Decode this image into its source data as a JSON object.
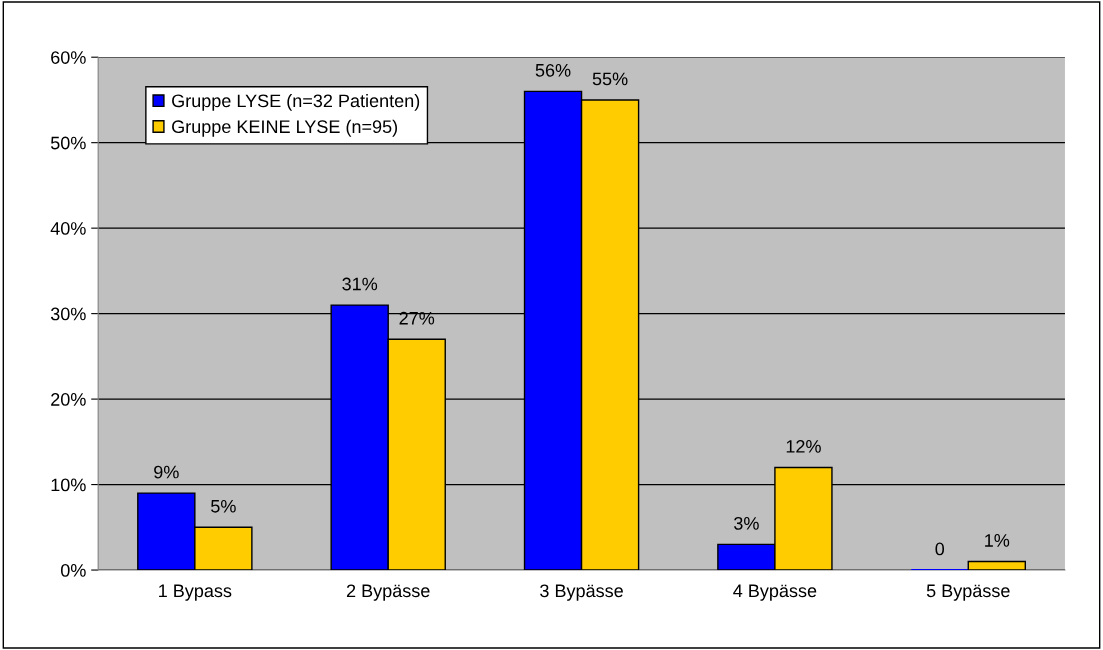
{
  "chart_data": {
    "type": "bar",
    "categories": [
      "1 Bypass",
      "2 Bypässe",
      "3 Bypässe",
      "4 Bypässe",
      "5 Bypässe"
    ],
    "series": [
      {
        "name": "Gruppe LYSE (n=32 Patienten)",
        "color": "#0000ff",
        "values": [
          9,
          31,
          56,
          3,
          0
        ],
        "value_labels": [
          "9%",
          "31%",
          "56%",
          "3%",
          "0"
        ]
      },
      {
        "name": "Gruppe KEINE LYSE (n=95)",
        "color": "#ffcc00",
        "values": [
          5,
          27,
          55,
          12,
          1
        ],
        "value_labels": [
          "5%",
          "27%",
          "55%",
          "12%",
          "1%"
        ]
      }
    ],
    "ylim": [
      0,
      60
    ],
    "yticks": [
      {
        "value": 0,
        "label": "0%"
      },
      {
        "value": 10,
        "label": "10%"
      },
      {
        "value": 20,
        "label": "20%"
      },
      {
        "value": 30,
        "label": "30%"
      },
      {
        "value": 40,
        "label": "40%"
      },
      {
        "value": 50,
        "label": "50%"
      },
      {
        "value": 60,
        "label": "60%"
      }
    ],
    "grid": "y",
    "legend": "top left"
  }
}
